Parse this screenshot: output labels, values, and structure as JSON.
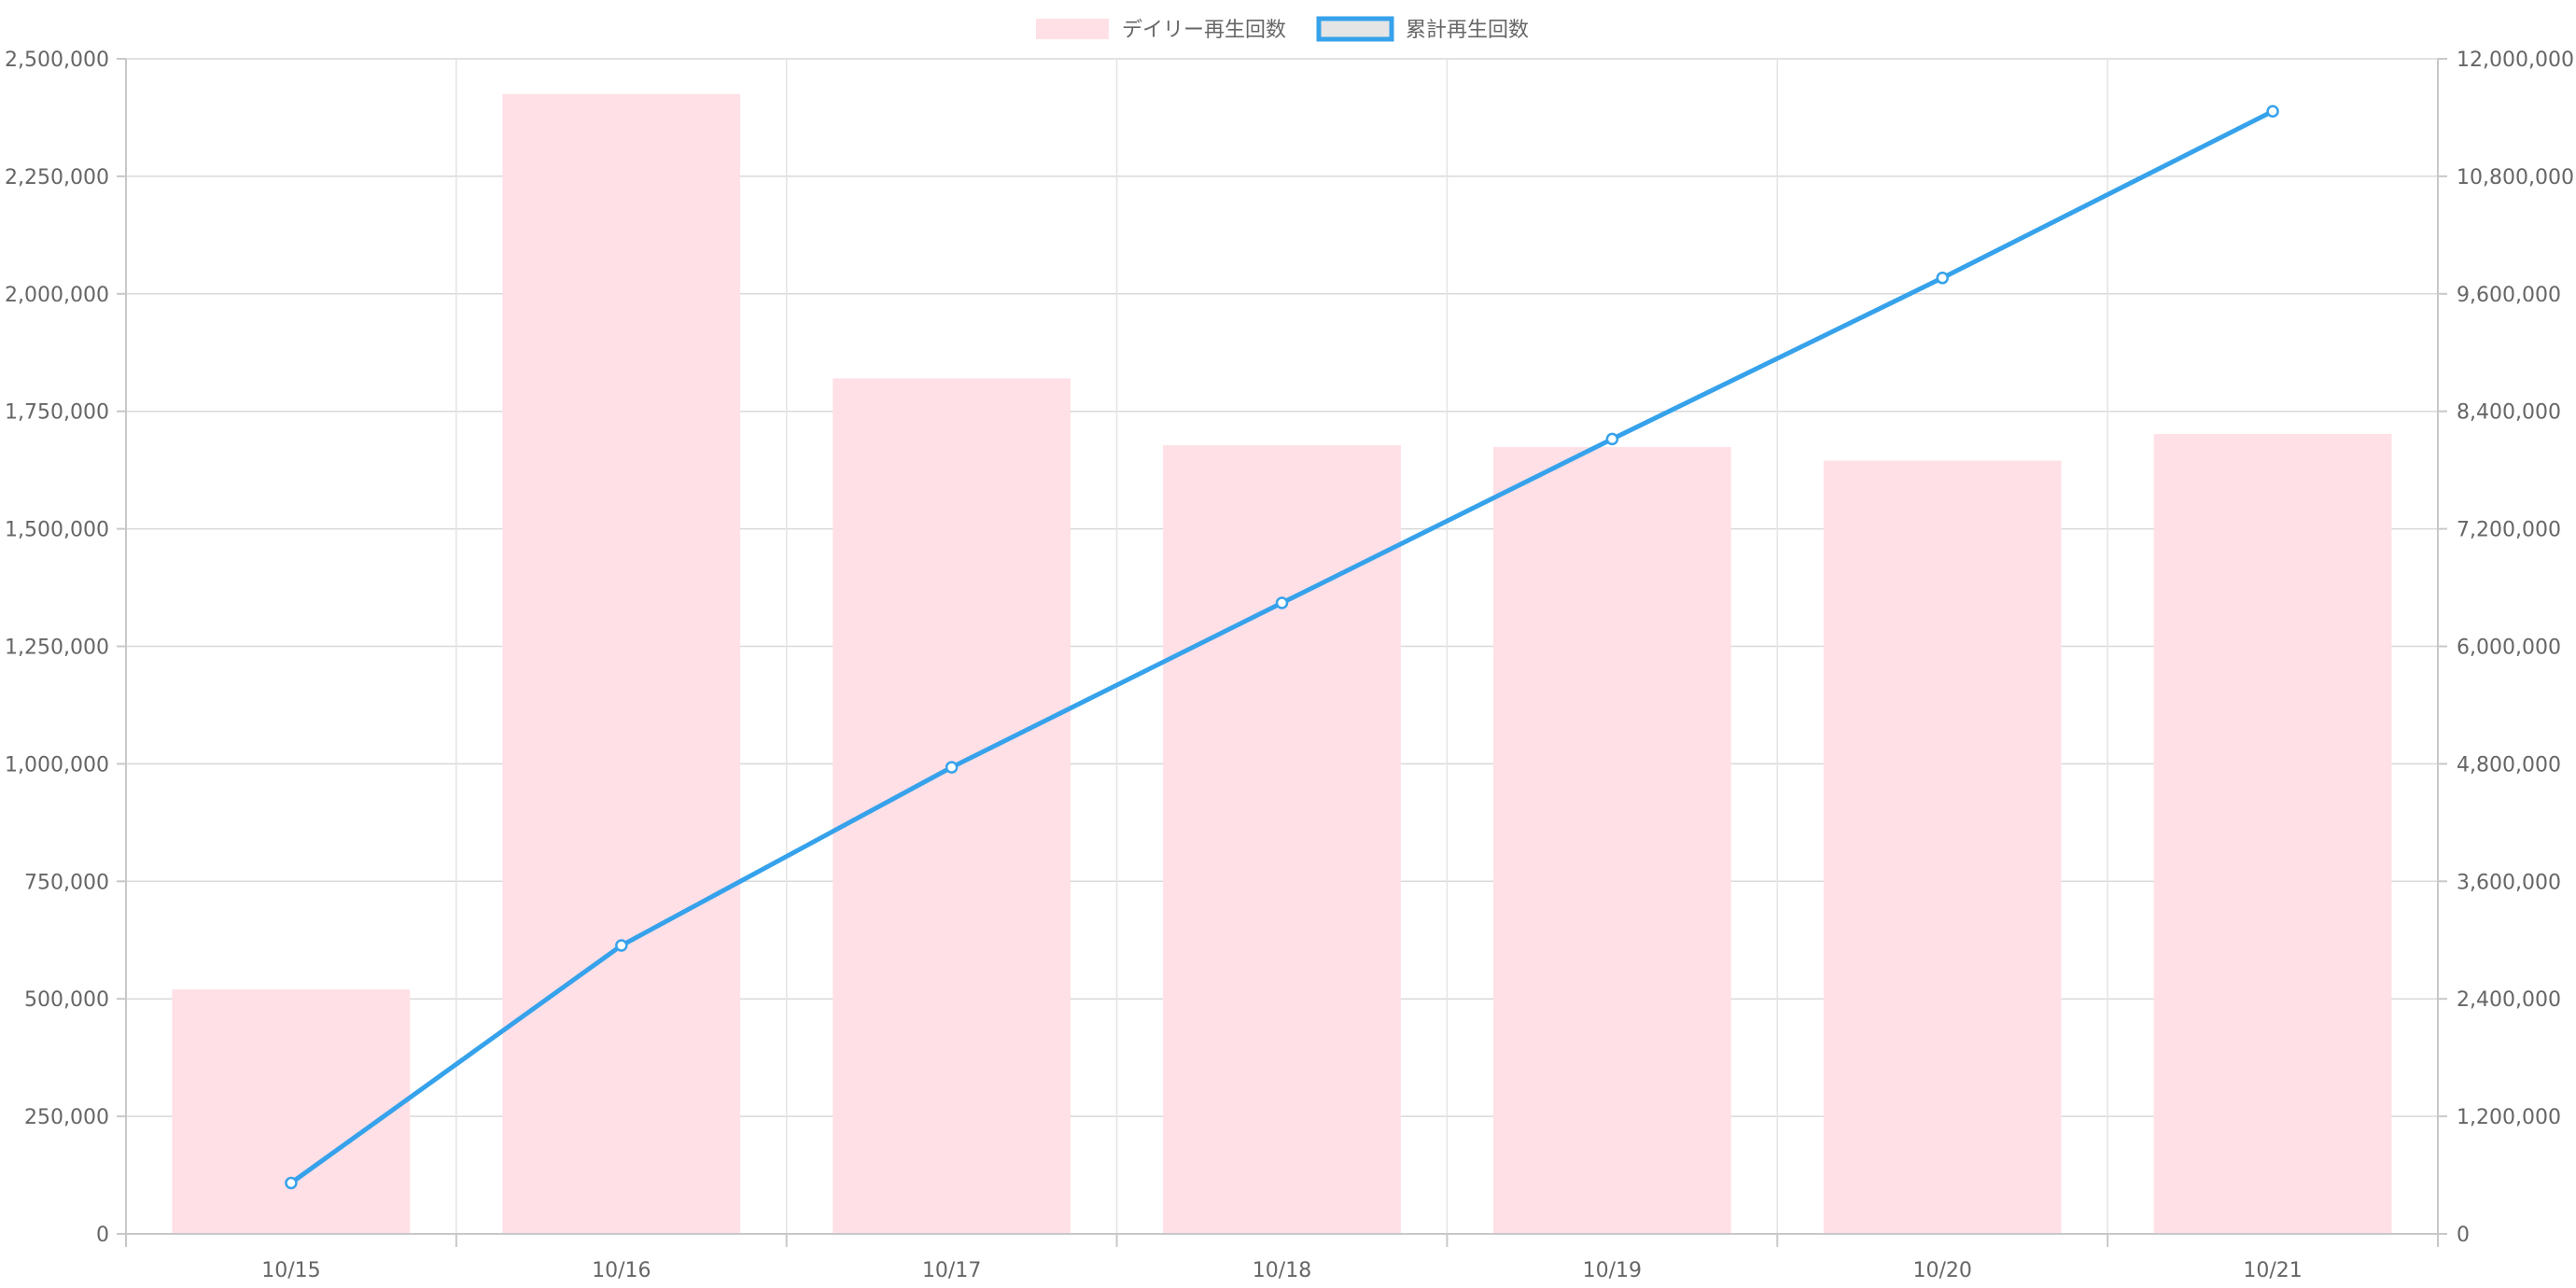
{
  "chart_data": {
    "type": "bar+line",
    "categories": [
      "10/15",
      "10/16",
      "10/17",
      "10/18",
      "10/19",
      "10/20",
      "10/21"
    ],
    "series": [
      {
        "name": "デイリー再生回数",
        "type": "bar",
        "axis": "left",
        "color": "#ffe0e6",
        "values": [
          520000,
          2425000,
          1820000,
          1678000,
          1674000,
          1645000,
          1702000
        ]
      },
      {
        "name": "累計再生回数",
        "type": "line",
        "axis": "right",
        "color": "#36a2eb",
        "legend_fill": "#e5e5e5",
        "values": [
          520000,
          2945000,
          4765000,
          6443000,
          8117000,
          9762000,
          11464000
        ]
      }
    ],
    "y_left": {
      "min": 0,
      "max": 2500000,
      "ticks": [
        "0",
        "250,000",
        "500,000",
        "750,000",
        "1,000,000",
        "1,250,000",
        "1,500,000",
        "1,750,000",
        "2,000,000",
        "2,250,000",
        "2,500,000"
      ]
    },
    "y_right": {
      "min": 0,
      "max": 12000000,
      "ticks": [
        "0",
        "1,200,000",
        "2,400,000",
        "3,600,000",
        "4,800,000",
        "6,000,000",
        "7,200,000",
        "8,400,000",
        "9,600,000",
        "10,800,000",
        "12,000,000"
      ]
    },
    "legend_position": "top-center",
    "grid": true
  }
}
